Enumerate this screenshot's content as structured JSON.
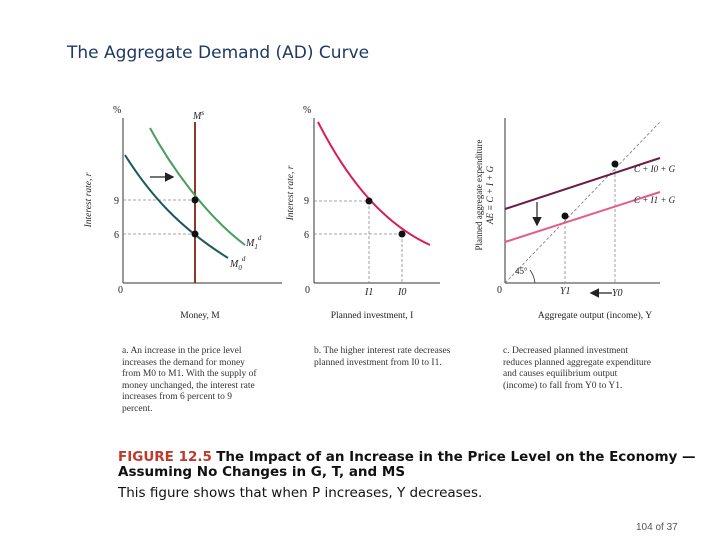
{
  "slide": {
    "title": "The Aggregate Demand (AD) Curve",
    "page_number": "104 of 37"
  },
  "colors": {
    "green_curve": "#4a9e5c",
    "dark_curve": "#1e5a5a",
    "money_supply": "#8b3a2a",
    "red_curve": "#d81b60",
    "pink_curve": "#e55a8a",
    "purple_curve": "#6a1b4d"
  },
  "panel_a": {
    "y_unit": "%",
    "y_label": "Interest rate, r",
    "x_label": "Money, M",
    "origin": "0",
    "tick_9": "9",
    "tick_6": "6",
    "supply_label": "M",
    "supply_sup": "s",
    "demand_new_label": "M",
    "demand_new_sub": "1",
    "demand_new_sup": "d",
    "demand_old_label": "M",
    "demand_old_sub": "0",
    "demand_old_sup": "d",
    "caption": "a. An increase in the price level increases the demand for money from M0 to M1. With the supply of money unchanged, the interest rate increases from 6 percent to 9 percent."
  },
  "panel_b": {
    "y_unit": "%",
    "y_label": "Interest rate, r",
    "x_label": "Planned investment, I",
    "origin": "0",
    "tick_9": "9",
    "tick_6": "6",
    "x_tick_1": "I1",
    "x_tick_0": "I0",
    "caption": "b. The higher interest rate decreases planned investment from I0 to I1."
  },
  "panel_c": {
    "y_label_1": "Planned aggregate expenditure",
    "y_label_2": "AE ≡ C + I + G",
    "x_label": "Aggregate output (income), Y",
    "origin": "0",
    "x_tick_1": "Y1",
    "x_tick_0": "Y0",
    "angle_label": "45°",
    "line_upper_label": "C + I0 + G",
    "line_lower_label": "C + I1 + G",
    "caption": "c. Decreased planned investment reduces planned aggregate expenditure and causes equilibrium output (income) to fall from Y0 to Y1."
  },
  "figure": {
    "number": "FIGURE 12.5",
    "title": "The Impact of an Increase in the Price Level on the Economy —Assuming No Changes in G, T, and MS",
    "description": "This figure shows that when P increases, Y decreases."
  }
}
